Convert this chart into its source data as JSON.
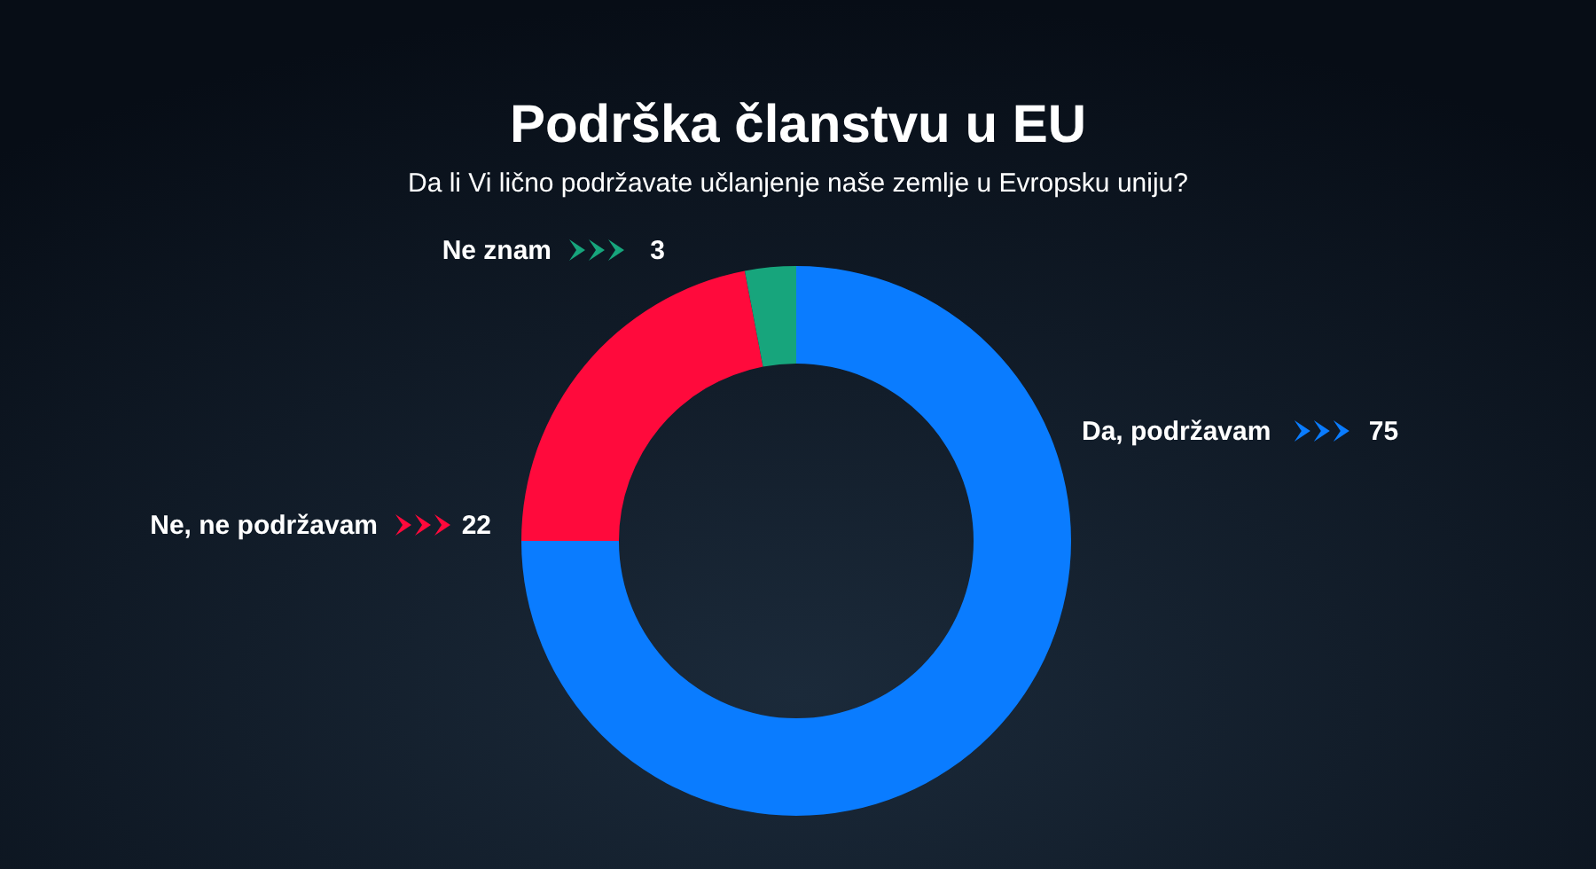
{
  "chart_data": {
    "type": "donut",
    "title": "Podrška članstvu u EU",
    "subtitle": "Da li Vi lično podržavate učlanjenje naše zemlje u Evropsku uniju?",
    "categories": [
      "Da, podržavam",
      "Ne, ne podržavam",
      "Ne znam"
    ],
    "values": [
      75,
      22,
      3
    ],
    "colors": [
      "#0a7cff",
      "#ff0a3c",
      "#17a57c"
    ],
    "data_labels": true,
    "legend": "left"
  }
}
